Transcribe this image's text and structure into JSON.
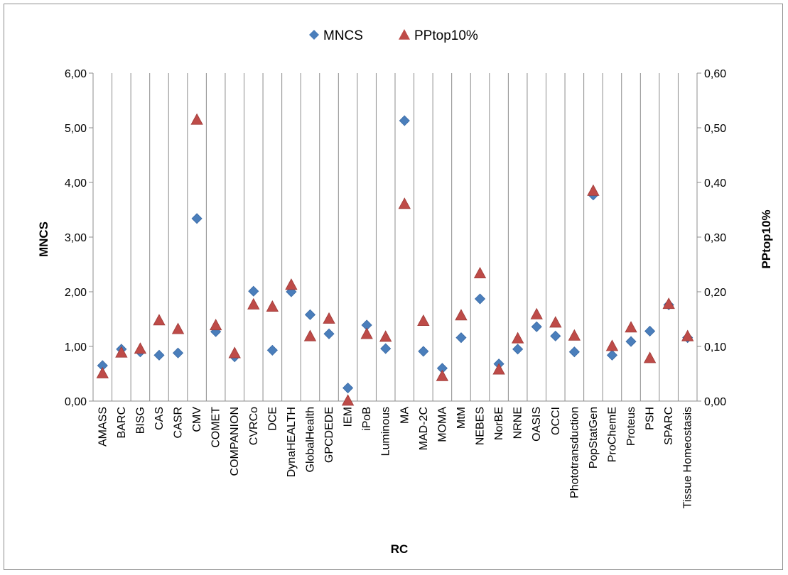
{
  "chart_data": {
    "type": "scatter",
    "xlabel": "RC",
    "ylabel": "MNCS",
    "y2label": "PPtop10%",
    "categories": [
      "AMASS",
      "BARC",
      "BISG",
      "CAS",
      "CASR",
      "CMV",
      "COMET",
      "COMPANION",
      "CVRCo",
      "DCE",
      "DynaHEALTH",
      "GlobalHealth",
      "GPCDEDE",
      "IEM",
      "iPoB",
      "Luminous",
      "MA",
      "MAD-2C",
      "MOMA",
      "MtM",
      "NEBES",
      "NorBE",
      "NRNE",
      "OASIS",
      "OCCI",
      "Phototransduction",
      "PopStatGen",
      "ProChemE",
      "Proteus",
      "PSH",
      "SPARC",
      "Tissue Homeostasis"
    ],
    "ylim": [
      0,
      6
    ],
    "y2lim": [
      0,
      0.6
    ],
    "yticks": [
      "0,00",
      "1,00",
      "2,00",
      "3,00",
      "4,00",
      "5,00",
      "6,00"
    ],
    "y2ticks": [
      "0,00",
      "0,10",
      "0,20",
      "0,30",
      "0,40",
      "0,50",
      "0,60"
    ],
    "grid": "vertical",
    "legend": "top",
    "series": [
      {
        "name": "MNCS",
        "axis": "left",
        "marker": "diamond",
        "color": "#4a7ebb",
        "values": [
          0.65,
          0.95,
          0.9,
          0.84,
          0.88,
          3.34,
          1.27,
          0.81,
          2.01,
          0.93,
          2.0,
          1.58,
          1.23,
          0.24,
          1.39,
          0.96,
          5.13,
          0.91,
          0.6,
          1.16,
          1.87,
          0.68,
          0.95,
          1.36,
          1.19,
          0.9,
          3.77,
          0.84,
          1.09,
          1.28,
          1.76,
          1.16
        ]
      },
      {
        "name": "PPtop10%",
        "axis": "right",
        "marker": "triangle",
        "color": "#be4b48",
        "values": [
          0.051,
          0.089,
          0.096,
          0.148,
          0.132,
          0.515,
          0.139,
          0.088,
          0.177,
          0.173,
          0.213,
          0.119,
          0.151,
          0.001,
          0.123,
          0.118,
          0.361,
          0.147,
          0.046,
          0.157,
          0.234,
          0.058,
          0.115,
          0.159,
          0.144,
          0.12,
          0.385,
          0.101,
          0.135,
          0.079,
          0.178,
          0.119
        ]
      }
    ]
  }
}
